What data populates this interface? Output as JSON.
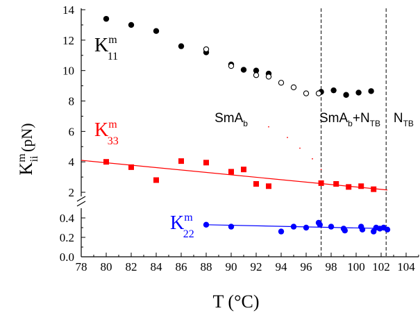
{
  "chart_data": {
    "type": "scatter",
    "xlabel": "T (°C)",
    "xlim": [
      78,
      105
    ],
    "x_ticks": [
      78,
      80,
      82,
      84,
      86,
      88,
      90,
      92,
      94,
      96,
      98,
      100,
      102,
      104
    ],
    "upper_panel": {
      "ylim": [
        1.5,
        14
      ],
      "y_ticks": [
        2,
        4,
        6,
        8,
        10,
        12,
        14
      ]
    },
    "lower_panel": {
      "ylim": [
        0.0,
        0.4
      ],
      "y_ticks": [
        "0.0",
        "0.2",
        "0.4"
      ],
      "y_ticks_values": [
        0.0,
        0.2,
        0.4
      ]
    },
    "ylabel": {
      "base": "K",
      "sup": "m",
      "sub": "ii",
      "unit": " (pN)"
    },
    "phase_transitions": [
      97.2,
      102.4
    ],
    "phase_labels": [
      {
        "main": "SmA",
        "sub": "b",
        "x": 90
      },
      {
        "main": "SmA",
        "sub": "b",
        "extra": "+N",
        "extra_sub": "TB",
        "x": 99.5
      },
      {
        "main": "N",
        "sub": "TB",
        "x": 103.8
      }
    ],
    "series": [
      {
        "label": {
          "base": "K",
          "sup": "m",
          "sub": "11"
        },
        "color": "#000000",
        "panel": "upper",
        "marker": "filled-circle",
        "points": [
          [
            80,
            13.4
          ],
          [
            82,
            13.0
          ],
          [
            84,
            12.6
          ],
          [
            86,
            11.6
          ],
          [
            88,
            11.2
          ],
          [
            90,
            10.4
          ],
          [
            91,
            10.05
          ],
          [
            92,
            10.0
          ],
          [
            93,
            9.8
          ],
          [
            97.2,
            8.6
          ],
          [
            98.2,
            8.7
          ],
          [
            99.2,
            8.4
          ],
          [
            100.2,
            8.55
          ],
          [
            101.2,
            8.65
          ]
        ]
      },
      {
        "label": "",
        "color": "#000000",
        "panel": "upper",
        "marker": "open-circle",
        "points": [
          [
            88,
            11.4
          ],
          [
            90,
            10.3
          ],
          [
            92,
            9.7
          ],
          [
            93,
            9.6
          ],
          [
            94,
            9.2
          ],
          [
            95,
            8.9
          ],
          [
            96,
            8.5
          ],
          [
            97,
            8.5
          ]
        ]
      },
      {
        "label": {
          "base": "K",
          "sup": "m",
          "sub": "33"
        },
        "color": "#ff0000",
        "panel": "upper",
        "marker": "filled-square",
        "points": [
          [
            80,
            4.0
          ],
          [
            82,
            3.65
          ],
          [
            84,
            2.8
          ],
          [
            86,
            4.05
          ],
          [
            88,
            3.95
          ],
          [
            90,
            3.35
          ],
          [
            91,
            3.5
          ],
          [
            92,
            2.55
          ],
          [
            93,
            2.4
          ],
          [
            97.2,
            2.6
          ],
          [
            98.4,
            2.55
          ],
          [
            99.4,
            2.35
          ],
          [
            100.4,
            2.4
          ],
          [
            101.4,
            2.2
          ]
        ],
        "fit_line": [
          [
            78,
            4.1
          ],
          [
            102.5,
            2.15
          ]
        ],
        "dotted_trace": [
          [
            93,
            6.3
          ],
          [
            94.5,
            5.6
          ],
          [
            95.5,
            4.9
          ],
          [
            96.5,
            4.2
          ],
          [
            97.2,
            3.5
          ]
        ]
      },
      {
        "label": {
          "base": "K",
          "sup": "m",
          "sub": "22"
        },
        "color": "#0000ff",
        "panel": "lower",
        "marker": "filled-circle",
        "points": [
          [
            88,
            0.33
          ],
          [
            90,
            0.31
          ],
          [
            94,
            0.26
          ],
          [
            95,
            0.31
          ],
          [
            96,
            0.3
          ],
          [
            97,
            0.35
          ],
          [
            97.1,
            0.33
          ],
          [
            98,
            0.31
          ],
          [
            99,
            0.29
          ],
          [
            99.1,
            0.27
          ],
          [
            100.4,
            0.31
          ],
          [
            100.5,
            0.28
          ],
          [
            101.4,
            0.26
          ],
          [
            101.6,
            0.3
          ],
          [
            101.9,
            0.29
          ],
          [
            102.2,
            0.3
          ],
          [
            102.5,
            0.28
          ]
        ],
        "fit_line": [
          [
            88,
            0.33
          ],
          [
            102.5,
            0.29
          ]
        ]
      }
    ],
    "grid": false
  }
}
